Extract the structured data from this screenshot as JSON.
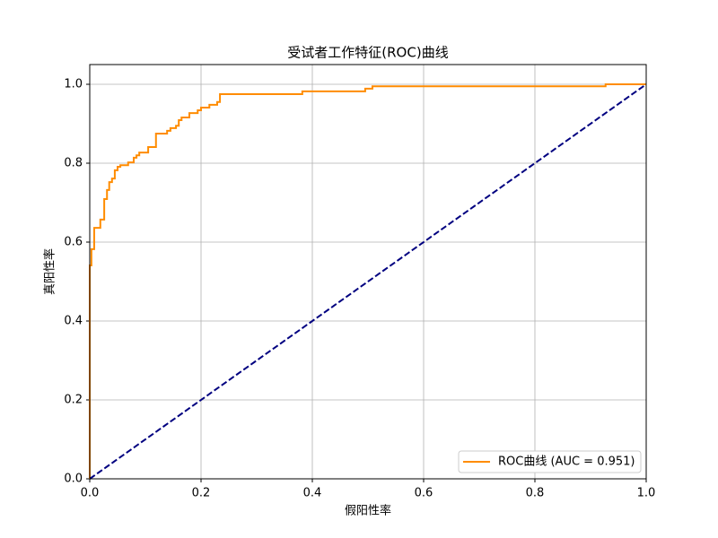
{
  "chart_data": {
    "type": "line",
    "title": "受试者工作特征(ROC)曲线",
    "x_label": "假阳性率",
    "y_label": "真阳性率",
    "xlim": [
      0,
      1
    ],
    "ylim": [
      0,
      1.05
    ],
    "xticks": [
      {
        "value": 0,
        "label": "0.0"
      },
      0.2,
      0.4,
      0.6,
      0.8,
      {
        "value": 1,
        "label": "1.0"
      }
    ],
    "yticks": [
      {
        "value": 0,
        "label": "0.0"
      },
      0.2,
      0.4,
      0.6,
      0.8,
      {
        "value": 1,
        "label": "1.0"
      }
    ],
    "grid": true,
    "legend": "lower right",
    "series": [
      {
        "name": "ROC曲线 (AUC = 0.951)",
        "color": "#ff8c00",
        "style": "solid",
        "x": [
          0,
          0,
          0.003,
          0.003,
          0.008,
          0.008,
          0.019,
          0.019,
          0.026,
          0.026,
          0.031,
          0.031,
          0.035,
          0.035,
          0.04,
          0.04,
          0.045,
          0.045,
          0.05,
          0.05,
          0.055,
          0.055,
          0.069,
          0.069,
          0.079,
          0.079,
          0.084,
          0.084,
          0.089,
          0.089,
          0.105,
          0.105,
          0.119,
          0.119,
          0.139,
          0.139,
          0.145,
          0.145,
          0.155,
          0.155,
          0.16,
          0.16,
          0.165,
          0.165,
          0.179,
          0.179,
          0.194,
          0.194,
          0.2,
          0.2,
          0.215,
          0.215,
          0.229,
          0.229,
          0.234,
          0.234,
          0.382,
          0.382,
          0.495,
          0.495,
          0.508,
          0.508,
          0.927,
          0.927,
          1
        ],
        "values": [
          0,
          0.541,
          0.541,
          0.582,
          0.582,
          0.636,
          0.636,
          0.657,
          0.657,
          0.709,
          0.709,
          0.732,
          0.732,
          0.752,
          0.752,
          0.761,
          0.761,
          0.782,
          0.782,
          0.791,
          0.791,
          0.795,
          0.795,
          0.802,
          0.802,
          0.814,
          0.814,
          0.82,
          0.82,
          0.827,
          0.827,
          0.841,
          0.841,
          0.875,
          0.875,
          0.882,
          0.882,
          0.889,
          0.889,
          0.895,
          0.895,
          0.909,
          0.909,
          0.916,
          0.916,
          0.927,
          0.927,
          0.934,
          0.934,
          0.941,
          0.941,
          0.948,
          0.948,
          0.955,
          0.955,
          0.975,
          0.975,
          0.982,
          0.982,
          0.989,
          0.989,
          0.995,
          0.995,
          1,
          1
        ]
      },
      {
        "color": "#000080",
        "style": "dashed",
        "x": [
          0,
          1
        ],
        "values": [
          0,
          1
        ]
      }
    ]
  }
}
